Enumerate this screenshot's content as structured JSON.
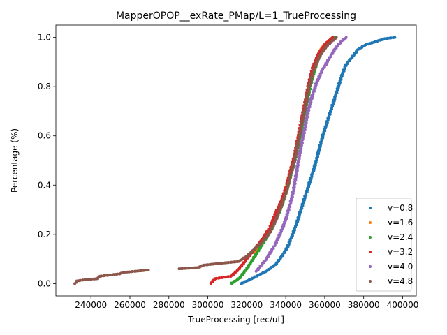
{
  "chart_data": {
    "type": "scatter",
    "title": "MapperOPOP__exRate_PMap/L=1_TrueProcessing",
    "xlabel": "TrueProcessing [rec/ut]",
    "ylabel": "Percentage (%)",
    "xlim": [
      222000,
      407000
    ],
    "ylim": [
      -0.05,
      1.05
    ],
    "xticks": [
      240000,
      260000,
      280000,
      300000,
      320000,
      340000,
      360000,
      380000,
      400000
    ],
    "xtick_labels": [
      "240000",
      "260000",
      "280000",
      "300000",
      "320000",
      "340000",
      "360000",
      "380000",
      "400000"
    ],
    "yticks": [
      0.0,
      0.2,
      0.4,
      0.6,
      0.8,
      1.0
    ],
    "ytick_labels": [
      "0.0",
      "0.2",
      "0.4",
      "0.6",
      "0.8",
      "1.0"
    ],
    "grid": false,
    "legend_position": "lower-right",
    "series": [
      {
        "name": "v=0.8",
        "color": "#1f77b4",
        "points": [
          [
            317000,
            0.0
          ],
          [
            320000,
            0.01
          ],
          [
            325000,
            0.03
          ],
          [
            330000,
            0.05
          ],
          [
            335000,
            0.08
          ],
          [
            338000,
            0.11
          ],
          [
            341000,
            0.15
          ],
          [
            343000,
            0.19
          ],
          [
            345000,
            0.23
          ],
          [
            347000,
            0.28
          ],
          [
            349000,
            0.33
          ],
          [
            351000,
            0.38
          ],
          [
            353000,
            0.43
          ],
          [
            355000,
            0.48
          ],
          [
            357000,
            0.54
          ],
          [
            359000,
            0.6
          ],
          [
            361000,
            0.65
          ],
          [
            363000,
            0.7
          ],
          [
            365000,
            0.75
          ],
          [
            367000,
            0.8
          ],
          [
            369000,
            0.85
          ],
          [
            371000,
            0.89
          ],
          [
            374000,
            0.92
          ],
          [
            377000,
            0.95
          ],
          [
            381000,
            0.97
          ],
          [
            385000,
            0.98
          ],
          [
            391000,
            0.995
          ],
          [
            396000,
            1.0
          ]
        ]
      },
      {
        "name": "v=1.6",
        "color": "#ff7f0e",
        "points": [
          [
            324000,
            0.13
          ],
          [
            328000,
            0.17
          ],
          [
            332000,
            0.22
          ],
          [
            335000,
            0.27
          ],
          [
            338000,
            0.32
          ],
          [
            340000,
            0.38
          ],
          [
            342000,
            0.44
          ],
          [
            344000,
            0.5
          ],
          [
            346000,
            0.56
          ],
          [
            347500,
            0.62
          ],
          [
            349000,
            0.68
          ],
          [
            350500,
            0.74
          ],
          [
            352000,
            0.8
          ],
          [
            354000,
            0.86
          ],
          [
            356000,
            0.91
          ],
          [
            358000,
            0.95
          ],
          [
            361000,
            0.98
          ],
          [
            365000,
            1.0
          ]
        ]
      },
      {
        "name": "v=2.4",
        "color": "#2ca02c",
        "points": [
          [
            312000,
            0.0
          ],
          [
            316000,
            0.02
          ],
          [
            320000,
            0.06
          ],
          [
            324000,
            0.11
          ],
          [
            328000,
            0.16
          ],
          [
            332000,
            0.21
          ],
          [
            335000,
            0.26
          ],
          [
            338000,
            0.32
          ],
          [
            340500,
            0.38
          ],
          [
            342500,
            0.44
          ],
          [
            344500,
            0.5
          ],
          [
            346500,
            0.56
          ],
          [
            348000,
            0.62
          ],
          [
            349500,
            0.68
          ],
          [
            351000,
            0.74
          ],
          [
            352500,
            0.8
          ],
          [
            354500,
            0.86
          ],
          [
            356500,
            0.91
          ],
          [
            359000,
            0.95
          ],
          [
            362000,
            0.98
          ],
          [
            365000,
            1.0
          ]
        ]
      },
      {
        "name": "v=3.2",
        "color": "#d62728",
        "points": [
          [
            301500,
            0.0
          ],
          [
            303500,
            0.02
          ],
          [
            312000,
            0.03
          ],
          [
            316000,
            0.06
          ],
          [
            320000,
            0.1
          ],
          [
            324000,
            0.14
          ],
          [
            328000,
            0.18
          ],
          [
            332000,
            0.23
          ],
          [
            335000,
            0.29
          ],
          [
            338000,
            0.34
          ],
          [
            340500,
            0.4
          ],
          [
            342500,
            0.46
          ],
          [
            344500,
            0.52
          ],
          [
            346000,
            0.58
          ],
          [
            347500,
            0.64
          ],
          [
            349000,
            0.7
          ],
          [
            350500,
            0.76
          ],
          [
            352000,
            0.82
          ],
          [
            354000,
            0.88
          ],
          [
            356500,
            0.93
          ],
          [
            360000,
            0.97
          ],
          [
            364000,
            1.0
          ]
        ]
      },
      {
        "name": "v=4.0",
        "color": "#9467bd",
        "points": [
          [
            325000,
            0.05
          ],
          [
            330000,
            0.1
          ],
          [
            334000,
            0.15
          ],
          [
            337000,
            0.2
          ],
          [
            340000,
            0.26
          ],
          [
            342500,
            0.33
          ],
          [
            344000,
            0.38
          ],
          [
            345500,
            0.45
          ],
          [
            347000,
            0.52
          ],
          [
            348500,
            0.58
          ],
          [
            350000,
            0.64
          ],
          [
            351500,
            0.7
          ],
          [
            353500,
            0.76
          ],
          [
            356000,
            0.82
          ],
          [
            359000,
            0.87
          ],
          [
            362000,
            0.91
          ],
          [
            365000,
            0.95
          ],
          [
            368000,
            0.98
          ],
          [
            371000,
            1.0
          ]
        ]
      },
      {
        "name": "v=4.8",
        "color": "#8c564b",
        "points": [
          [
            232000,
            0.0
          ],
          [
            232500,
            0.01
          ],
          [
            236000,
            0.015
          ],
          [
            243500,
            0.02
          ],
          [
            244500,
            0.03
          ],
          [
            255000,
            0.04
          ],
          [
            256000,
            0.045
          ],
          [
            269500,
            0.055
          ],
          [
            285000,
            0.06
          ],
          [
            295000,
            0.065
          ],
          [
            298000,
            0.075
          ],
          [
            303500,
            0.08
          ],
          [
            316000,
            0.09
          ],
          [
            317500,
            0.1
          ],
          [
            320000,
            0.11
          ],
          [
            324000,
            0.14
          ],
          [
            328000,
            0.17
          ],
          [
            332000,
            0.21
          ],
          [
            335000,
            0.26
          ],
          [
            338000,
            0.32
          ],
          [
            340500,
            0.38
          ],
          [
            342500,
            0.44
          ],
          [
            344500,
            0.5
          ],
          [
            346000,
            0.56
          ],
          [
            347500,
            0.62
          ],
          [
            349000,
            0.68
          ],
          [
            350500,
            0.74
          ],
          [
            352000,
            0.8
          ],
          [
            354000,
            0.86
          ],
          [
            356500,
            0.91
          ],
          [
            359500,
            0.95
          ],
          [
            363000,
            0.98
          ],
          [
            366000,
            1.0
          ]
        ]
      }
    ]
  }
}
